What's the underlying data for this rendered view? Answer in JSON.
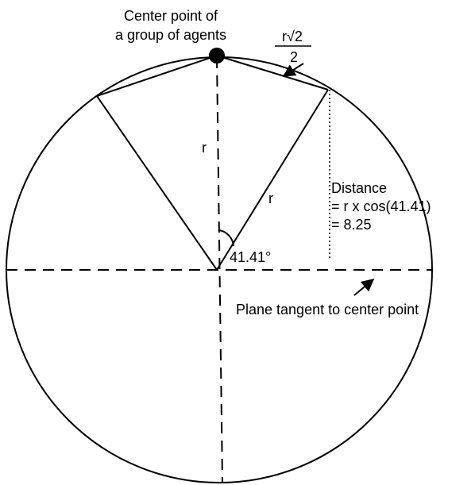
{
  "center_label": {
    "line1": "Center point of",
    "line2": "a group of agents"
  },
  "chord_label": {
    "numerator": "r√2",
    "denominator": "2"
  },
  "radius_labels": [
    "r",
    "r"
  ],
  "angle_label": "41.41°",
  "distance_label": {
    "line1": "Distance",
    "line2": "= r x cos(41.41)",
    "line3": "= 8.25"
  },
  "plane_label": "Plane tangent to center point"
}
